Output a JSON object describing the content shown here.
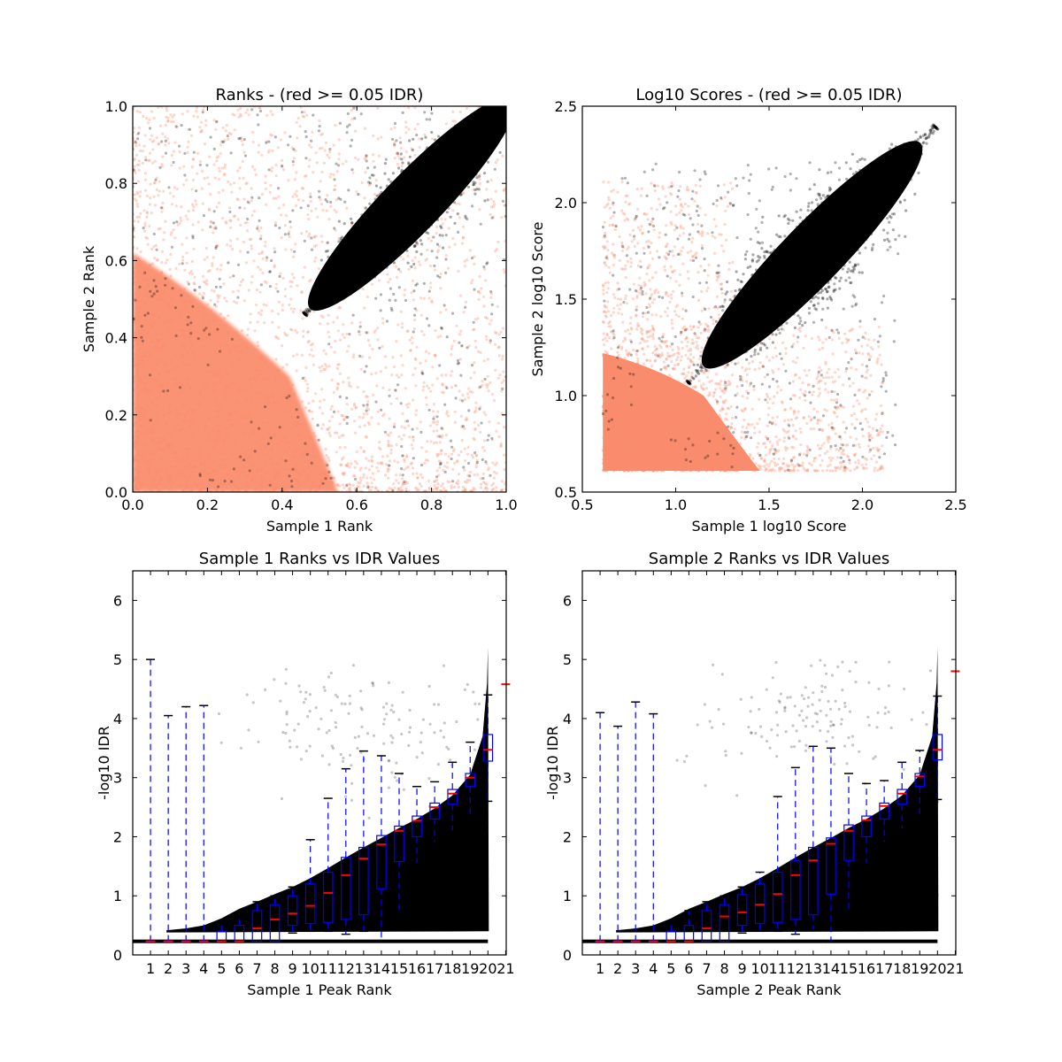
{
  "colors": {
    "not_passing": "#fa8c6e",
    "passing": "#000000",
    "box": "#0000ff",
    "median": "#ff0000",
    "axes": "#000000"
  },
  "chart_data": [
    {
      "type": "scatter",
      "id": "ranks",
      "title": "Ranks - (red >= 0.05 IDR)",
      "xlabel": "Sample 1 Rank",
      "ylabel": "Sample 2 Rank",
      "xlim": [
        0.0,
        1.0
      ],
      "ylim": [
        0.0,
        1.0
      ],
      "xticks": [
        "0.0",
        "0.2",
        "0.4",
        "0.6",
        "0.8",
        "1.0"
      ],
      "yticks": [
        "0.0",
        "0.2",
        "0.4",
        "0.6",
        "0.8",
        "1.0"
      ],
      "xtick_values": [
        0.0,
        0.2,
        0.4,
        0.6,
        0.8,
        1.0
      ],
      "ytick_values": [
        0.0,
        0.2,
        0.4,
        0.6,
        0.8,
        1.0
      ],
      "series": [
        {
          "name": "IDR >= 0.05",
          "color": "#fa8c6e",
          "description_region": "diffuse cloud concentrated near origin"
        },
        {
          "name": "IDR < 0.05",
          "color": "#000000",
          "ellipse_from": [
            0.47,
            0.48
          ],
          "ellipse_to": [
            1.0,
            1.0
          ]
        }
      ]
    },
    {
      "type": "scatter",
      "id": "scores",
      "title": "Log10 Scores - (red >= 0.05 IDR)",
      "xlabel": "Sample 1 log10 Score",
      "ylabel": "Sample 2 log10 Score",
      "xlim": [
        0.5,
        2.5
      ],
      "ylim": [
        0.5,
        2.5
      ],
      "xticks": [
        "0.5",
        "1.0",
        "1.5",
        "2.0",
        "2.5"
      ],
      "yticks": [
        "0.5",
        "1.0",
        "1.5",
        "2.0",
        "2.5"
      ],
      "xtick_values": [
        0.5,
        1.0,
        1.5,
        2.0,
        2.5
      ],
      "ytick_values": [
        0.5,
        1.0,
        1.5,
        2.0,
        2.5
      ],
      "series": [
        {
          "name": "IDR >= 0.05",
          "color": "#fa8c6e",
          "min_score": 0.61
        },
        {
          "name": "IDR < 0.05",
          "color": "#000000",
          "ellipse_from": [
            1.1,
            1.1
          ],
          "ellipse_to": [
            2.35,
            2.35
          ]
        }
      ]
    },
    {
      "type": "box",
      "id": "s1idr",
      "title": "Sample 1 Ranks vs IDR Values",
      "xlabel": "Sample 1 Peak Rank",
      "ylabel": "-log10 IDR",
      "ylim": [
        0,
        6.5
      ],
      "yticks": [
        "0",
        "1",
        "2",
        "3",
        "4",
        "5",
        "6"
      ],
      "ytick_values": [
        0,
        1,
        2,
        3,
        4,
        5,
        6
      ],
      "categories": [
        "1",
        "2",
        "3",
        "4",
        "5",
        "6",
        "7",
        "8",
        "9",
        "10",
        "11",
        "12",
        "13",
        "14",
        "15",
        "16",
        "17",
        "18",
        "19",
        "20",
        "21"
      ],
      "boxes": [
        {
          "q1": 0.23,
          "median": 0.23,
          "q3": 0.23,
          "wlo": 0.23,
          "whi": 5.0
        },
        {
          "q1": 0.23,
          "median": 0.23,
          "q3": 0.23,
          "wlo": 0.23,
          "whi": 4.05
        },
        {
          "q1": 0.23,
          "median": 0.23,
          "q3": 0.23,
          "wlo": 0.23,
          "whi": 4.2
        },
        {
          "q1": 0.23,
          "median": 0.23,
          "q3": 0.23,
          "wlo": 0.23,
          "whi": 4.22
        },
        {
          "q1": 0.23,
          "median": 0.23,
          "q3": 0.4,
          "wlo": 0.23,
          "whi": 0.55
        },
        {
          "q1": 0.23,
          "median": 0.23,
          "q3": 0.5,
          "wlo": 0.23,
          "whi": 0.7
        },
        {
          "q1": 0.23,
          "median": 0.45,
          "q3": 0.75,
          "wlo": 0.23,
          "whi": 0.9
        },
        {
          "q1": 0.23,
          "median": 0.6,
          "q3": 0.85,
          "wlo": 0.23,
          "whi": 1.0
        },
        {
          "q1": 0.5,
          "median": 0.7,
          "q3": 1.0,
          "wlo": 0.37,
          "whi": 1.15
        },
        {
          "q1": 0.53,
          "median": 0.83,
          "q3": 1.2,
          "wlo": 0.4,
          "whi": 1.95
        },
        {
          "q1": 0.55,
          "median": 1.05,
          "q3": 1.4,
          "wlo": 0.4,
          "whi": 2.65
        },
        {
          "q1": 0.6,
          "median": 1.35,
          "q3": 1.65,
          "wlo": 0.35,
          "whi": 3.15
        },
        {
          "q1": 0.68,
          "median": 1.63,
          "q3": 1.82,
          "wlo": 0.4,
          "whi": 3.45
        },
        {
          "q1": 1.12,
          "median": 1.87,
          "q3": 2.02,
          "wlo": 0.23,
          "whi": 3.37
        },
        {
          "q1": 1.58,
          "median": 2.1,
          "q3": 2.18,
          "wlo": 0.7,
          "whi": 3.07
        },
        {
          "q1": 2.0,
          "median": 2.27,
          "q3": 2.35,
          "wlo": 1.55,
          "whi": 2.85
        },
        {
          "q1": 2.3,
          "median": 2.5,
          "q3": 2.57,
          "wlo": 1.9,
          "whi": 2.93
        },
        {
          "q1": 2.55,
          "median": 2.73,
          "q3": 2.8,
          "wlo": 2.1,
          "whi": 3.26
        },
        {
          "q1": 2.85,
          "median": 3.0,
          "q3": 3.07,
          "wlo": 2.36,
          "whi": 3.6
        },
        {
          "q1": 3.28,
          "median": 3.47,
          "q3": 3.73,
          "wlo": 2.6,
          "whi": 4.4
        },
        {
          "q1": null,
          "median": 4.58,
          "q3": null,
          "wlo": null,
          "whi": null
        }
      ]
    },
    {
      "type": "box",
      "id": "s2idr",
      "title": "Sample 2 Ranks vs IDR Values",
      "xlabel": "Sample 2 Peak Rank",
      "ylabel": "-log10 IDR",
      "ylim": [
        0,
        6.5
      ],
      "yticks": [
        "0",
        "1",
        "2",
        "3",
        "4",
        "5",
        "6"
      ],
      "ytick_values": [
        0,
        1,
        2,
        3,
        4,
        5,
        6
      ],
      "categories": [
        "1",
        "2",
        "3",
        "4",
        "5",
        "6",
        "7",
        "8",
        "9",
        "10",
        "11",
        "12",
        "13",
        "14",
        "15",
        "16",
        "17",
        "18",
        "19",
        "20",
        "21"
      ],
      "boxes": [
        {
          "q1": 0.23,
          "median": 0.23,
          "q3": 0.23,
          "wlo": 0.23,
          "whi": 4.1
        },
        {
          "q1": 0.23,
          "median": 0.23,
          "q3": 0.23,
          "wlo": 0.23,
          "whi": 3.87
        },
        {
          "q1": 0.23,
          "median": 0.23,
          "q3": 0.23,
          "wlo": 0.23,
          "whi": 4.28
        },
        {
          "q1": 0.23,
          "median": 0.23,
          "q3": 0.23,
          "wlo": 0.23,
          "whi": 4.08
        },
        {
          "q1": 0.23,
          "median": 0.23,
          "q3": 0.4,
          "wlo": 0.23,
          "whi": 0.55
        },
        {
          "q1": 0.23,
          "median": 0.23,
          "q3": 0.5,
          "wlo": 0.23,
          "whi": 0.75
        },
        {
          "q1": 0.23,
          "median": 0.45,
          "q3": 0.75,
          "wlo": 0.23,
          "whi": 0.9
        },
        {
          "q1": 0.23,
          "median": 0.65,
          "q3": 0.85,
          "wlo": 0.23,
          "whi": 1.0
        },
        {
          "q1": 0.5,
          "median": 0.72,
          "q3": 1.02,
          "wlo": 0.37,
          "whi": 1.15
        },
        {
          "q1": 0.53,
          "median": 0.85,
          "q3": 1.2,
          "wlo": 0.4,
          "whi": 1.4
        },
        {
          "q1": 0.55,
          "median": 1.03,
          "q3": 1.4,
          "wlo": 0.4,
          "whi": 2.68
        },
        {
          "q1": 0.6,
          "median": 1.35,
          "q3": 1.6,
          "wlo": 0.35,
          "whi": 3.17
        },
        {
          "q1": 0.68,
          "median": 1.6,
          "q3": 1.82,
          "wlo": 0.42,
          "whi": 3.53
        },
        {
          "q1": 1.03,
          "median": 1.88,
          "q3": 1.98,
          "wlo": 0.23,
          "whi": 3.5
        },
        {
          "q1": 1.6,
          "median": 2.1,
          "q3": 2.2,
          "wlo": 0.75,
          "whi": 3.07
        },
        {
          "q1": 2.0,
          "median": 2.28,
          "q3": 2.35,
          "wlo": 1.55,
          "whi": 2.9
        },
        {
          "q1": 2.3,
          "median": 2.52,
          "q3": 2.57,
          "wlo": 1.9,
          "whi": 2.95
        },
        {
          "q1": 2.55,
          "median": 2.73,
          "q3": 2.8,
          "wlo": 2.13,
          "whi": 3.26
        },
        {
          "q1": 2.85,
          "median": 3.02,
          "q3": 3.07,
          "wlo": 2.37,
          "whi": 3.46
        },
        {
          "q1": 3.3,
          "median": 3.47,
          "q3": 3.73,
          "wlo": 2.63,
          "whi": 4.38
        },
        {
          "q1": null,
          "median": 4.8,
          "q3": null,
          "wlo": null,
          "whi": null
        }
      ]
    }
  ]
}
